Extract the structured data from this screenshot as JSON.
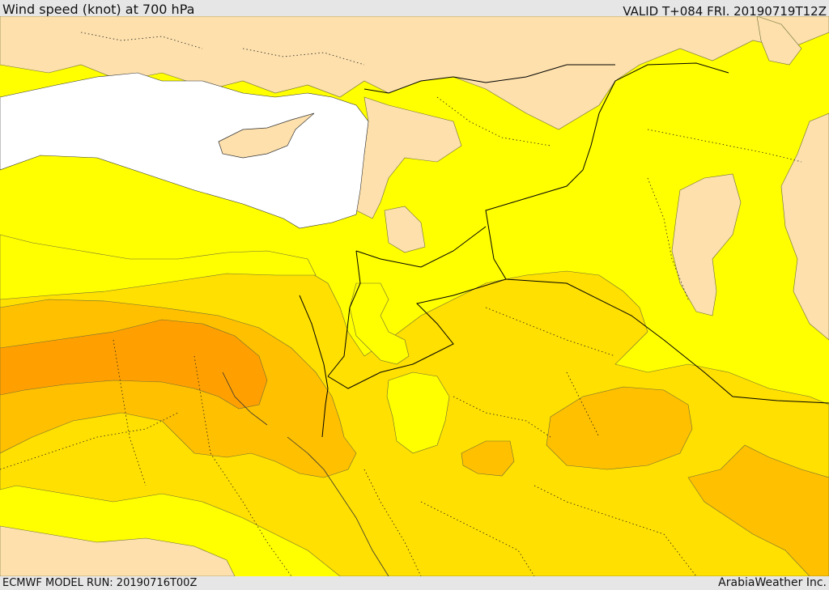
{
  "header": {
    "title": "Wind speed (knot) at 700 hPa",
    "valid_time": "VALID T+084 FRI. 20190719T12Z"
  },
  "footer": {
    "model_run": "ECMWF MODEL RUN: 20190716T00Z",
    "credit": "ArabiaWeather Inc."
  },
  "map": {
    "variable": "wind speed",
    "level_hpa": 700,
    "unit": "knot",
    "colors": {
      "sea": "#ffffff",
      "land_low": "#fde0ac",
      "band_1": "#ffff00",
      "band_2": "#ffe000",
      "band_3": "#ffc000",
      "band_4": "#ffa000",
      "border": "#000000",
      "contour": "#6e6e38"
    },
    "layers": [
      "sea-mask",
      "wind-speed-fill",
      "contours",
      "country-borders",
      "province-borders"
    ]
  }
}
